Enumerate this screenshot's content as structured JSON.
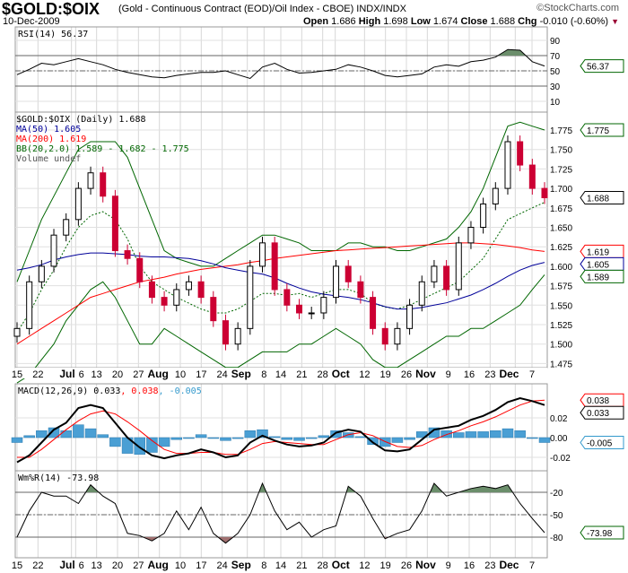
{
  "header": {
    "symbol": "$GOLD:$OIX",
    "description": "(Gold - Continuous Contract (EOD)/Oil Index - CBOE) INDX/INDX",
    "date": "10-Dec-2009",
    "watermark": "©StockCharts.com",
    "open_label": "Open",
    "open": "1.686",
    "high_label": "High",
    "high": "1.698",
    "low_label": "Low",
    "low": "1.674",
    "close_label": "Close",
    "close": "1.688",
    "chg_label": "Chg",
    "chg": "-0.010 (-0.60%)"
  },
  "colors": {
    "up": "#000000",
    "down": "#cc0033",
    "ma50": "#000099",
    "ma200": "#ff0000",
    "bb": "#006600",
    "rsi_fill": "#6b8e6b",
    "wr_low_fill": "#a07070",
    "hist": "#4a9fd4",
    "macd": "#000000",
    "signal": "#ff0000"
  },
  "chart_data": {
    "type": "line",
    "x_day_count": 127,
    "date_ticks": [
      {
        "label": "15",
        "day": 0
      },
      {
        "label": "22",
        "day": 5
      },
      {
        "label": "Jul",
        "day": 13,
        "bold": true
      },
      {
        "label": "6",
        "day": 14
      },
      {
        "label": "13",
        "day": 19
      },
      {
        "label": "20",
        "day": 24
      },
      {
        "label": "27",
        "day": 29
      },
      {
        "label": "Aug",
        "day": 34,
        "bold": true
      },
      {
        "label": "10",
        "day": 39
      },
      {
        "label": "17",
        "day": 44
      },
      {
        "label": "24",
        "day": 49
      },
      {
        "label": "Sep",
        "day": 55,
        "bold": true
      },
      {
        "label": "8",
        "day": 59
      },
      {
        "label": "14",
        "day": 63
      },
      {
        "label": "21",
        "day": 68
      },
      {
        "label": "28",
        "day": 73
      },
      {
        "label": "Oct",
        "day": 76,
        "bold": true
      },
      {
        "label": "12",
        "day": 83
      },
      {
        "label": "19",
        "day": 88
      },
      {
        "label": "26",
        "day": 93
      },
      {
        "label": "Nov",
        "day": 98,
        "bold": true
      },
      {
        "label": "9",
        "day": 103
      },
      {
        "label": "16",
        "day": 108
      },
      {
        "label": "23",
        "day": 113
      },
      {
        "label": "Dec",
        "day": 119,
        "bold": true
      },
      {
        "label": "7",
        "day": 123
      }
    ],
    "rsi": {
      "legend": "RSI(14) 56.37",
      "last": "56.37",
      "ticks": [
        "90",
        "70",
        "50",
        "30",
        "10"
      ],
      "tick_values": [
        90,
        70,
        50,
        30,
        10
      ],
      "values": [
        45,
        52,
        60,
        58,
        62,
        66,
        62,
        58,
        52,
        48,
        45,
        42,
        41,
        44,
        46,
        48,
        48,
        50,
        45,
        40,
        55,
        60,
        52,
        47,
        48,
        50,
        52,
        58,
        55,
        50,
        44,
        42,
        44,
        46,
        55,
        58,
        56,
        62,
        64,
        68,
        78,
        77,
        62,
        56.37
      ]
    },
    "price": {
      "legend": "$GOLD:$OIX (Daily) 1.688",
      "ma50_legend": "MA(50) 1.605",
      "ma200_legend": "MA(200) 1.619",
      "bb_legend": "BB(20,2.0) 1.589 - 1.682 - 1.775",
      "volume_legend": "Volume undef",
      "ticks": [
        "1.775",
        "1.750",
        "1.725",
        "1.700",
        "1.675",
        "1.650",
        "1.625",
        "1.600",
        "1.575",
        "1.550",
        "1.525",
        "1.500",
        "1.475"
      ],
      "tick_values": [
        1.775,
        1.75,
        1.725,
        1.7,
        1.675,
        1.65,
        1.625,
        1.6,
        1.575,
        1.55,
        1.525,
        1.5,
        1.475
      ],
      "markers": {
        "bb_upper": "1.775",
        "close": "1.688",
        "ma200": "1.619",
        "ma50": "1.605",
        "bb_lower": "1.589"
      },
      "close": [
        1.52,
        1.58,
        1.6,
        1.64,
        1.66,
        1.7,
        1.72,
        1.69,
        1.62,
        1.61,
        1.58,
        1.56,
        1.55,
        1.57,
        1.58,
        1.56,
        1.53,
        1.5,
        1.52,
        1.6,
        1.63,
        1.57,
        1.55,
        1.54,
        1.54,
        1.56,
        1.6,
        1.58,
        1.56,
        1.52,
        1.5,
        1.52,
        1.55,
        1.58,
        1.6,
        1.57,
        1.63,
        1.65,
        1.68,
        1.7,
        1.76,
        1.73,
        1.7,
        1.688
      ],
      "ma50": [
        1.595,
        1.598,
        1.602,
        1.608,
        1.612,
        1.615,
        1.617,
        1.617,
        1.616,
        1.615,
        1.613,
        1.612,
        1.612,
        1.611,
        1.61,
        1.607,
        1.603,
        1.598,
        1.595,
        1.592,
        1.59,
        1.585,
        1.578,
        1.572,
        1.567,
        1.564,
        1.562,
        1.56,
        1.557,
        1.553,
        1.548,
        1.545,
        1.545,
        1.547,
        1.55,
        1.553,
        1.558,
        1.563,
        1.57,
        1.578,
        1.587,
        1.595,
        1.601,
        1.605
      ],
      "ma200": [
        1.5,
        1.51,
        1.52,
        1.53,
        1.54,
        1.55,
        1.56,
        1.565,
        1.57,
        1.575,
        1.58,
        1.583,
        1.586,
        1.59,
        1.593,
        1.596,
        1.598,
        1.6,
        1.602,
        1.605,
        1.607,
        1.61,
        1.612,
        1.614,
        1.616,
        1.618,
        1.62,
        1.621,
        1.622,
        1.623,
        1.624,
        1.625,
        1.626,
        1.627,
        1.628,
        1.629,
        1.63,
        1.63,
        1.629,
        1.628,
        1.626,
        1.624,
        1.621,
        1.619
      ],
      "bb_upper": [
        1.58,
        1.62,
        1.66,
        1.69,
        1.72,
        1.75,
        1.76,
        1.76,
        1.76,
        1.74,
        1.7,
        1.66,
        1.62,
        1.61,
        1.605,
        1.6,
        1.6,
        1.61,
        1.62,
        1.63,
        1.64,
        1.64,
        1.635,
        1.63,
        1.62,
        1.62,
        1.62,
        1.63,
        1.63,
        1.625,
        1.625,
        1.62,
        1.62,
        1.625,
        1.63,
        1.635,
        1.65,
        1.67,
        1.7,
        1.74,
        1.78,
        1.785,
        1.78,
        1.775
      ],
      "bb_lower": [
        1.45,
        1.46,
        1.48,
        1.5,
        1.53,
        1.55,
        1.57,
        1.58,
        1.56,
        1.53,
        1.5,
        1.5,
        1.52,
        1.51,
        1.5,
        1.49,
        1.48,
        1.47,
        1.47,
        1.48,
        1.49,
        1.49,
        1.49,
        1.5,
        1.5,
        1.51,
        1.52,
        1.51,
        1.5,
        1.48,
        1.47,
        1.47,
        1.48,
        1.49,
        1.5,
        1.51,
        1.51,
        1.52,
        1.52,
        1.53,
        1.54,
        1.55,
        1.57,
        1.589
      ]
    },
    "macd": {
      "legend_main": "MACD(12,26,9) 0.033",
      "legend_signal": ", 0.038",
      "legend_hist": ", -0.005",
      "ticks": [
        "0.02",
        "0.00",
        "-0.02"
      ],
      "tick_values": [
        0.02,
        0,
        -0.02
      ],
      "markers": {
        "signal": "0.038",
        "macd": "0.033",
        "hist": "-0.005"
      },
      "macd": [
        -0.025,
        -0.018,
        -0.005,
        0.008,
        0.015,
        0.03,
        0.033,
        0.03,
        0.015,
        0.0,
        -0.01,
        -0.018,
        -0.021,
        -0.018,
        -0.016,
        -0.012,
        -0.015,
        -0.02,
        -0.018,
        -0.005,
        0.002,
        -0.003,
        -0.007,
        -0.009,
        -0.008,
        -0.005,
        0.005,
        0.008,
        0.006,
        -0.005,
        -0.013,
        -0.014,
        -0.012,
        -0.002,
        0.008,
        0.01,
        0.012,
        0.018,
        0.022,
        0.028,
        0.036,
        0.04,
        0.037,
        0.033
      ],
      "signal": [
        -0.02,
        -0.02,
        -0.012,
        -0.002,
        0.008,
        0.017,
        0.024,
        0.027,
        0.024,
        0.016,
        0.007,
        -0.003,
        -0.012,
        -0.016,
        -0.016,
        -0.015,
        -0.015,
        -0.017,
        -0.017,
        -0.012,
        -0.006,
        -0.004,
        -0.005,
        -0.006,
        -0.007,
        -0.007,
        -0.002,
        0.003,
        0.005,
        0.002,
        -0.004,
        -0.009,
        -0.01,
        -0.008,
        -0.002,
        0.003,
        0.007,
        0.012,
        0.016,
        0.021,
        0.027,
        0.033,
        0.037,
        0.038
      ]
    },
    "williams": {
      "legend": "Wm%R(14) -73.98",
      "last": "-73.98",
      "ticks": [
        "-20",
        "-50",
        "-80"
      ],
      "tick_values": [
        -20,
        -50,
        -80
      ],
      "values": [
        -80,
        -45,
        -20,
        -25,
        -25,
        -35,
        -10,
        -25,
        -35,
        -75,
        -78,
        -85,
        -75,
        -45,
        -70,
        -40,
        -75,
        -88,
        -75,
        -50,
        -8,
        -45,
        -70,
        -60,
        -80,
        -70,
        -65,
        -12,
        -25,
        -55,
        -82,
        -75,
        -70,
        -45,
        -8,
        -25,
        -20,
        -15,
        -12,
        -15,
        -10,
        -35,
        -55,
        -73.98
      ]
    }
  }
}
